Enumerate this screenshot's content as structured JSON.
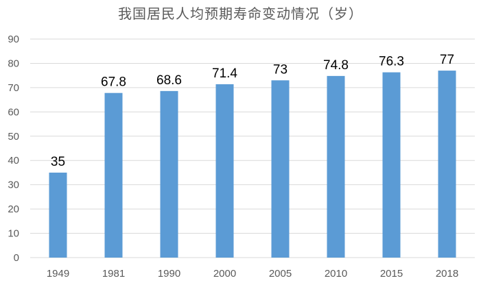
{
  "chart_data": {
    "type": "bar",
    "title": "我国居民人均预期寿命变动情况（岁）",
    "xlabel": "",
    "ylabel": "",
    "categories": [
      "1949",
      "1981",
      "1990",
      "2000",
      "2005",
      "2010",
      "2015",
      "2018"
    ],
    "values": [
      35,
      67.8,
      68.6,
      71.4,
      73,
      74.8,
      76.3,
      77
    ],
    "data_labels": [
      "35",
      "67.8",
      "68.6",
      "71.4",
      "73",
      "74.8",
      "76.3",
      "77"
    ],
    "ylim": [
      0,
      90
    ],
    "yticks": [
      0,
      10,
      20,
      30,
      40,
      50,
      60,
      70,
      80,
      90
    ],
    "grid": true,
    "legend": "none",
    "bar_color": "#5b9bd5",
    "grid_color": "#d9d9d9"
  }
}
